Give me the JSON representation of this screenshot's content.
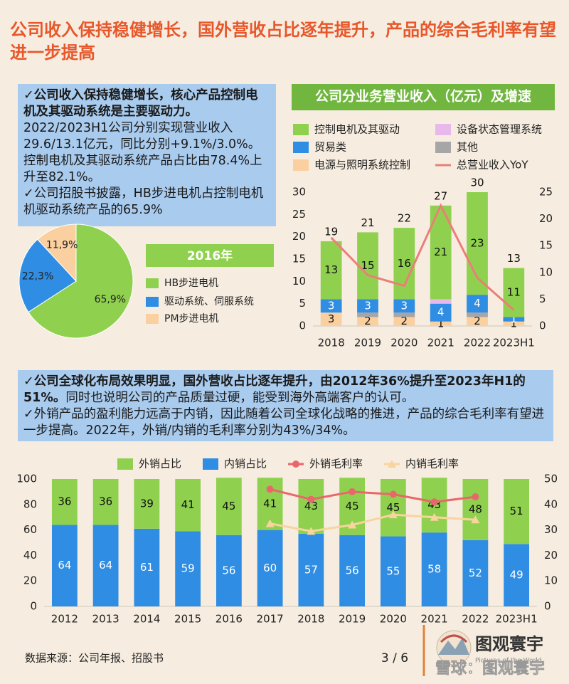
{
  "header": {
    "title": "公司收入保持稳健增长，国外营收占比逐年提升，产品的综合毛利率有望进一步提高"
  },
  "text_block_1": [
    [
      {
        "text": "✓公司收入保持稳健增长，核心产品控制电机及其驱动系统是主要驱动力。",
        "bold": true
      }
    ],
    [
      {
        "text": "2022/2023H1公司分别实现营业收入29.6/13.1亿元，同比分别+9.1%/3.0%。控制电机及其驱动系统产品占比由78.4%上升至82.1%。"
      }
    ],
    [
      {
        "text": "✓公司招股书披露，HB步进电机占控制电机机驱动系统产品的65.9%"
      }
    ]
  ],
  "text_block_2": [
    [
      {
        "text": "✓公司全球化布局效果明显，国外营收占比逐年提升，由2012年36%提升至2023年H1的51%。",
        "bold": true
      },
      {
        "text": "同时也说明公司的产品质量过硬，能受到海外高端客户的认可。"
      }
    ],
    [
      {
        "text": "✓外销产品的盈利能力远高于内销，因此随着公司全球化战略的推进，产品的综合毛利率有望进一步提高。2022年，外销/内销的毛利率分别为43%/34%。"
      }
    ]
  ],
  "chart_data": [
    {
      "type": "pie",
      "title": "2016年",
      "categories": [
        "HB步进电机",
        "驱动系统、伺服系统",
        "PM步进电机"
      ],
      "values": [
        65.9,
        22.3,
        11.9
      ],
      "value_labels": [
        "65,9%",
        "22,3%",
        "11,9%"
      ],
      "colors": [
        "#8fd14f",
        "#2f8de4",
        "#fbd0a0"
      ]
    },
    {
      "type": "bar",
      "stacked": true,
      "title": "公司分业务营业收入（亿元）及增速",
      "categories": [
        "2018",
        "2019",
        "2020",
        "2021",
        "2022",
        "2023H1"
      ],
      "series": [
        {
          "name": "控制电机及其驱动",
          "color": "#8fd14f",
          "values": [
            13,
            15,
            16,
            21,
            23,
            11
          ],
          "show_labels": true,
          "label_color": "#111"
        },
        {
          "name": "设备状态管理系统",
          "color": "#e7b8ec",
          "values": [
            0,
            0,
            0,
            1,
            0,
            0
          ],
          "show_labels": false
        },
        {
          "name": "贸易类",
          "color": "#2f8de4",
          "values": [
            3,
            3,
            3,
            4,
            4,
            1
          ],
          "show_labels": true,
          "label_color": "#fff"
        },
        {
          "name": "其他",
          "color": "#a6a6a6",
          "values": [
            0,
            1,
            1,
            0,
            1,
            0
          ],
          "show_labels": false
        },
        {
          "name": "电源与照明系统控制",
          "color": "#fbd0a0",
          "values": [
            3,
            2,
            2,
            1,
            2,
            1
          ],
          "show_labels": true,
          "label_color": "#111"
        },
        {
          "name": "总营业收入YoY",
          "color": "#ea7f78",
          "type": "line",
          "axis": "y2",
          "values": [
            16.5,
            9.5,
            7.5,
            22.5,
            9,
            3
          ]
        }
      ],
      "totals": [
        19,
        21,
        22,
        27,
        30,
        13
      ],
      "ylim": [
        0,
        30
      ],
      "yticks": [
        0,
        5,
        10,
        15,
        20,
        25,
        30
      ],
      "y2lim": [
        0,
        25
      ],
      "y2ticks": [
        0,
        5,
        10,
        15,
        20,
        25
      ]
    },
    {
      "type": "bar",
      "stacked": true,
      "categories": [
        "2012",
        "2013",
        "2014",
        "2015",
        "2016",
        "2017",
        "2018",
        "2019",
        "2020",
        "2021",
        "2022",
        "2023H1"
      ],
      "series": [
        {
          "name": "外销占比",
          "color": "#8fd14f",
          "values": [
            36,
            36,
            39,
            41,
            45,
            41,
            43,
            45,
            45,
            43,
            48,
            51
          ],
          "show_labels": true,
          "label_color": "#111"
        },
        {
          "name": "内销占比",
          "color": "#2f8de4",
          "values": [
            64,
            64,
            61,
            59,
            56,
            60,
            57,
            56,
            55,
            58,
            52,
            49
          ],
          "show_labels": true,
          "label_color": "#fff"
        },
        {
          "name": "外销毛利率",
          "color": "#e9676b",
          "type": "line",
          "marker": "circle",
          "axis": "y2",
          "values": [
            null,
            null,
            null,
            null,
            null,
            46,
            42,
            45,
            44,
            41,
            43,
            null
          ]
        },
        {
          "name": "内销毛利率",
          "color": "#f8d49e",
          "type": "line",
          "marker": "triangle",
          "axis": "y2",
          "values": [
            null,
            null,
            null,
            null,
            null,
            32.5,
            29.5,
            32,
            36,
            35,
            34,
            null
          ]
        }
      ],
      "ylim": [
        0,
        100
      ],
      "yticks": [
        0,
        20,
        40,
        60,
        80,
        100
      ],
      "y2lim": [
        0,
        50
      ],
      "y2ticks": [
        0,
        10,
        20,
        30,
        40,
        50
      ]
    }
  ],
  "footer": {
    "source": "数据来源：公司年报、招股书",
    "page": "3 / 6",
    "logo": "图观寰宇",
    "logo_subtitle": "Pictures of the World",
    "watermark": "雪球：图观寰宇"
  }
}
